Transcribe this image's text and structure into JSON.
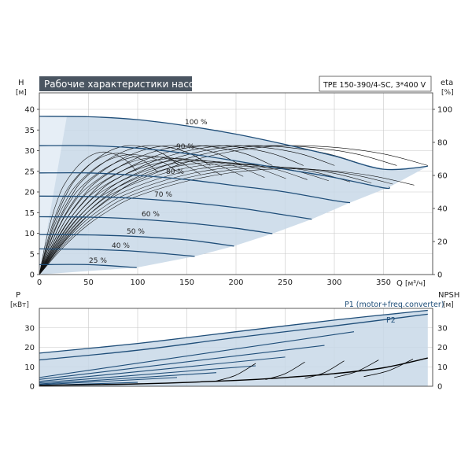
{
  "chart_data": [
    {
      "type": "line",
      "title": "Рабочие характеристики насоса",
      "model": "TPE 150-390/4-SC, 3*400 V",
      "xlabel": "Q",
      "xunit": "[м³/ч]",
      "ylabel_left": "H",
      "yunit_left": "[м]",
      "ylabel_right": "eta",
      "yunit_right": "[%]",
      "xlim": [
        0,
        400
      ],
      "xticks": [
        0,
        50,
        100,
        150,
        200,
        250,
        300,
        350
      ],
      "ylim_left": [
        0,
        44
      ],
      "yticks_left": [
        0,
        5,
        10,
        15,
        20,
        25,
        30,
        35,
        40
      ],
      "ylim_right": [
        0,
        110
      ],
      "yticks_right": [
        0,
        20,
        40,
        60,
        80,
        100
      ],
      "grid": true,
      "colors": {
        "curve": "#1f4e79",
        "envelope": "#c8d8e8",
        "efficiency": "#000000"
      },
      "speed_curves": [
        {
          "label": "100 %",
          "x": [
            0,
            50,
            100,
            150,
            200,
            250,
            300,
            350,
            395
          ],
          "y": [
            38.3,
            38.2,
            37.5,
            36.0,
            34.0,
            31.5,
            28.7,
            25.5,
            26.2
          ]
        },
        {
          "label": "90 %",
          "x": [
            0,
            50,
            100,
            150,
            200,
            250,
            300,
            350,
            356
          ],
          "y": [
            31.2,
            31.2,
            30.6,
            29.3,
            27.5,
            25.5,
            23.5,
            21.0,
            21.2
          ]
        },
        {
          "label": "80 %",
          "x": [
            0,
            50,
            100,
            150,
            200,
            250,
            300,
            316
          ],
          "y": [
            24.6,
            24.6,
            24.0,
            23.0,
            21.5,
            20.0,
            17.9,
            17.4
          ]
        },
        {
          "label": "70 %",
          "x": [
            0,
            50,
            100,
            150,
            200,
            250,
            277
          ],
          "y": [
            19.0,
            18.9,
            18.4,
            17.5,
            16.2,
            14.4,
            13.4
          ]
        },
        {
          "label": "60 %",
          "x": [
            0,
            50,
            100,
            150,
            200,
            237
          ],
          "y": [
            14.0,
            13.9,
            13.4,
            12.5,
            11.2,
            9.9
          ]
        },
        {
          "label": "50 %",
          "x": [
            0,
            50,
            100,
            150,
            198
          ],
          "y": [
            9.7,
            9.6,
            9.2,
            8.4,
            6.9
          ]
        },
        {
          "label": "40 %",
          "x": [
            0,
            50,
            100,
            158
          ],
          "y": [
            6.2,
            6.1,
            5.6,
            4.4
          ]
        },
        {
          "label": "25 %",
          "x": [
            0,
            50,
            99
          ],
          "y": [
            2.4,
            2.4,
            1.7
          ]
        }
      ],
      "efficiency_curve": {
        "x": [
          0,
          25,
          50,
          75,
          100,
          150,
          200,
          250,
          300,
          350,
          395
        ],
        "y": [
          0,
          20,
          36,
          48,
          57,
          68,
          75,
          78,
          77,
          73,
          66
        ]
      }
    },
    {
      "type": "line",
      "xlim": [
        0,
        400
      ],
      "ylabel_left": "P",
      "yunit_left": "[кВт]",
      "ylabel_right": "NPSH",
      "yunit_right": "[м]",
      "ylim_left": [
        0,
        40
      ],
      "yticks_left": [
        0,
        10,
        20,
        30
      ],
      "ylim_right": [
        0,
        40
      ],
      "yticks_right": [
        0,
        10,
        20,
        30
      ],
      "grid": true,
      "series": [
        {
          "name": "P1 (motor+freq.converter)",
          "x": [
            0,
            100,
            200,
            300,
            395
          ],
          "y": [
            17.0,
            22.0,
            28.0,
            34.0,
            39.0
          ]
        },
        {
          "name": "P2",
          "x": [
            0,
            100,
            200,
            300,
            395
          ],
          "y": [
            13.5,
            18.5,
            25.0,
            31.0,
            37.0
          ]
        }
      ],
      "power_curves": [
        {
          "x": [
            0,
            320
          ],
          "y": [
            4.5,
            28.0
          ]
        },
        {
          "x": [
            0,
            290
          ],
          "y": [
            3.5,
            21.0
          ]
        },
        {
          "x": [
            0,
            250
          ],
          "y": [
            2.5,
            15.0
          ]
        },
        {
          "x": [
            0,
            220
          ],
          "y": [
            1.8,
            10.5
          ]
        },
        {
          "x": [
            0,
            180
          ],
          "y": [
            1.2,
            7.0
          ]
        },
        {
          "x": [
            0,
            140
          ],
          "y": [
            0.8,
            4.5
          ]
        },
        {
          "x": [
            0,
            100
          ],
          "y": [
            0.4,
            2.0
          ]
        }
      ],
      "npsh_curve": {
        "x": [
          0,
          100,
          200,
          250,
          300,
          350,
          395
        ],
        "y": [
          0.5,
          1.2,
          3.0,
          4.5,
          6.5,
          9.5,
          14.5
        ]
      }
    }
  ]
}
